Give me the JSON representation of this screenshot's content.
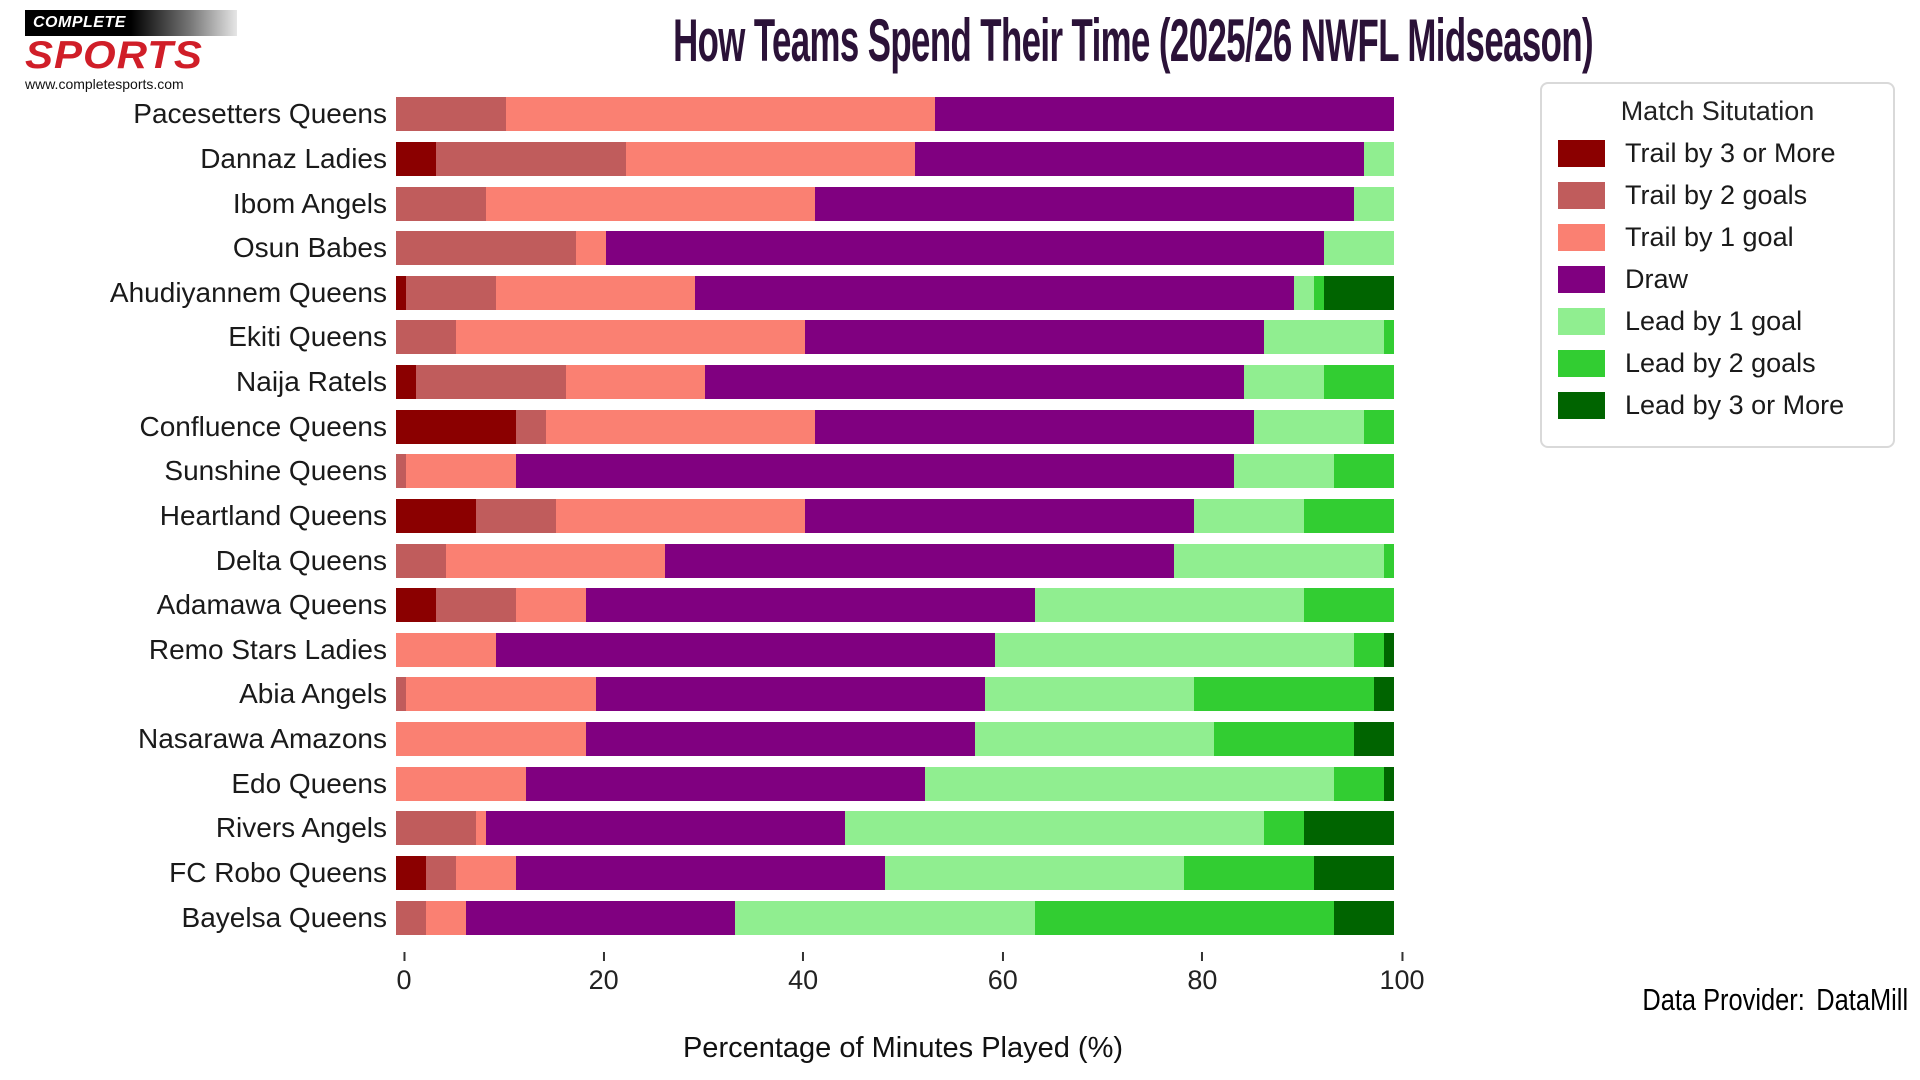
{
  "header": {
    "title": "How Teams Spend Their Time (2025/26 NWFL Midseason)",
    "logo": {
      "line1": "COMPLETE",
      "line2": "SPORTS",
      "line3": "www.completesports.com"
    }
  },
  "legend": {
    "title": "Match Situtation"
  },
  "footer": {
    "label": "Data Provider:",
    "value": "DataMill"
  },
  "chart_data": {
    "type": "stacked-bar-horizontal",
    "title": "How Teams Spend Their Time (2025/26 NWFL Midseason)",
    "xlabel": "Percentage of Minutes Played (%)",
    "xlim": [
      0,
      100
    ],
    "xticks": [
      0,
      20,
      40,
      60,
      80,
      100
    ],
    "legend_title": "Match Situtation",
    "legend_position": "upper right",
    "grid": false,
    "units": "percent of minutes played",
    "categories": [
      "Pacesetters Queens",
      "Dannaz Ladies",
      "Ibom Angels",
      "Osun Babes",
      "Ahudiyannem Queens",
      "Ekiti Queens",
      "Naija Ratels",
      "Confluence Queens",
      "Sunshine Queens",
      "Heartland Queens",
      "Delta Queens",
      "Adamawa Queens",
      "Remo Stars Ladies",
      "Abia Angels",
      "Nasarawa Amazons",
      "Edo Queens",
      "Rivers Angels",
      "FC Robo Queens",
      "Bayelsa Queens"
    ],
    "series": [
      {
        "name": "Trail by 3 or More",
        "color": "#8B0000",
        "values": [
          0,
          4,
          0,
          0,
          1,
          0,
          2,
          12,
          0,
          8,
          0,
          4,
          0,
          0,
          0,
          0,
          0,
          3,
          0
        ]
      },
      {
        "name": "Trail by 2 goals",
        "color": "#C05C5C",
        "values": [
          11,
          19,
          9,
          18,
          9,
          6,
          15,
          3,
          1,
          8,
          5,
          8,
          0,
          1,
          0,
          0,
          8,
          3,
          3
        ]
      },
      {
        "name": "Trail by 1 goal",
        "color": "#FA8072",
        "values": [
          43,
          29,
          33,
          3,
          20,
          35,
          14,
          27,
          11,
          25,
          22,
          7,
          10,
          19,
          19,
          13,
          1,
          6,
          4
        ]
      },
      {
        "name": "Draw",
        "color": "#800080",
        "values": [
          46,
          45,
          54,
          72,
          60,
          46,
          54,
          44,
          72,
          39,
          51,
          45,
          50,
          39,
          39,
          40,
          36,
          37,
          27
        ]
      },
      {
        "name": "Lead by 1 goal",
        "color": "#90EE90",
        "values": [
          0,
          3,
          4,
          7,
          2,
          12,
          8,
          11,
          10,
          11,
          21,
          27,
          36,
          21,
          24,
          41,
          42,
          30,
          30
        ]
      },
      {
        "name": "Lead by 2 goals",
        "color": "#32CD32",
        "values": [
          0,
          0,
          0,
          0,
          1,
          1,
          7,
          3,
          6,
          9,
          1,
          9,
          3,
          18,
          14,
          5,
          4,
          13,
          30
        ]
      },
      {
        "name": "Lead by 3 or More",
        "color": "#006400",
        "values": [
          0,
          0,
          0,
          0,
          7,
          0,
          0,
          0,
          0,
          0,
          0,
          0,
          1,
          2,
          4,
          1,
          9,
          8,
          6
        ]
      }
    ]
  }
}
